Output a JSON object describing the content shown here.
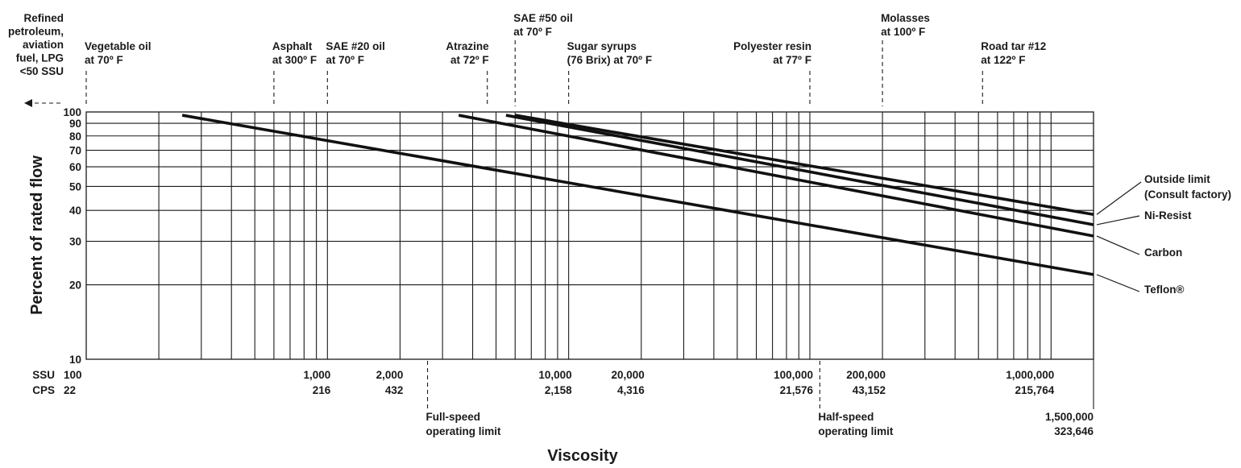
{
  "chart_data": {
    "type": "line",
    "xscale": "log",
    "yscale": "log",
    "xlim": [
      100,
      1500000
    ],
    "ylim": [
      10,
      100
    ],
    "xlabel": "Viscosity",
    "ylabel": "Percent of rated flow",
    "x_axis_rows": [
      "SSU",
      "CPS"
    ],
    "x_ticks": [
      {
        "ssu": 100,
        "ssu_label": "100",
        "cps_label": "22"
      },
      {
        "ssu": 1000,
        "ssu_label": "1,000",
        "cps_label": "216"
      },
      {
        "ssu": 2000,
        "ssu_label": "2,000",
        "cps_label": "432"
      },
      {
        "ssu": 10000,
        "ssu_label": "10,000",
        "cps_label": "2,158"
      },
      {
        "ssu": 20000,
        "ssu_label": "20,000",
        "cps_label": "4,316"
      },
      {
        "ssu": 100000,
        "ssu_label": "100,000",
        "cps_label": "21,576"
      },
      {
        "ssu": 200000,
        "ssu_label": "200,000",
        "cps_label": "43,152"
      },
      {
        "ssu": 1000000,
        "ssu_label": "1,000,000",
        "cps_label": "215,764"
      }
    ],
    "x_end_tick": {
      "ssu": 1500000,
      "ssu_label": "1,500,000",
      "cps_label": "323,646"
    },
    "y_ticks": [
      10,
      20,
      30,
      40,
      50,
      60,
      70,
      80,
      90,
      100
    ],
    "grid": true,
    "series": [
      {
        "name": "Outside limit\n(Consult factory)",
        "points": [
          [
            6000,
            97
          ],
          [
            1500000,
            38.5
          ]
        ]
      },
      {
        "name": "Ni-Resist",
        "points": [
          [
            5500,
            97
          ],
          [
            1500000,
            35
          ]
        ]
      },
      {
        "name": "Carbon",
        "points": [
          [
            3500,
            97
          ],
          [
            1500000,
            31.5
          ]
        ]
      },
      {
        "name": "Teflon®",
        "points": [
          [
            250,
            97
          ],
          [
            1500000,
            22
          ]
        ]
      }
    ],
    "fluids": [
      {
        "label": "Vegetable oil\nat 70º F",
        "ssu": 100,
        "align": "start"
      },
      {
        "label": "Asphalt\nat 300º F",
        "ssu": 600,
        "align": "start"
      },
      {
        "label": "SAE #20 oil\nat 70º F",
        "ssu": 1000,
        "align": "start"
      },
      {
        "label": "Atrazine\nat 72º F",
        "ssu": 4600,
        "align": "end"
      },
      {
        "label": "SAE #50 oil\nat 70º F",
        "ssu": 6000,
        "align": "start",
        "high": true
      },
      {
        "label": "Sugar syrups\n(76 Brix) at 70º F",
        "ssu": 10000,
        "align": "start"
      },
      {
        "label": "Polyester resin\nat 77º F",
        "ssu": 100000,
        "align": "end"
      },
      {
        "label": "Molasses\nat 100º F",
        "ssu": 200000,
        "align": "start",
        "high": true
      },
      {
        "label": "Road tar #12\nat 122º F",
        "ssu": 520000,
        "align": "start"
      }
    ],
    "below_note": "Refined\npetroleum,\naviation\nfuel, LPG\n<50 SSU",
    "operating_limits": [
      {
        "label": "Full-speed\noperating limit",
        "ssu": 2600
      },
      {
        "label": "Half-speed\noperating limit",
        "ssu": 110000
      }
    ]
  }
}
